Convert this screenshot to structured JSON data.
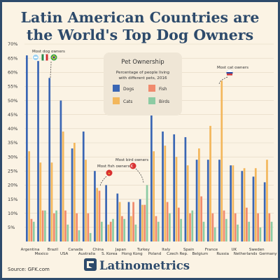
{
  "title_line1": "Latin American Countries are",
  "title_line2": "the World's Top Dog Owners",
  "source": "Source: GFK.com",
  "brand": "Latinometrics",
  "legend": {
    "title": "Pet Ownership",
    "subtitle_line1": "Percentage of people living",
    "subtitle_line2": "with different pets, 2016",
    "items": [
      "Dogs",
      "Fish",
      "Cats",
      "Birds"
    ]
  },
  "annotations": {
    "dog": "Most dog owners",
    "fish": "Most fish owners",
    "bird": "Most bird owners",
    "cat": "Most cat owners"
  },
  "colors": {
    "dogs": "#3a66b4",
    "cats": "#f3b75c",
    "fish": "#f08a6d",
    "birds": "#8ccba3",
    "title": "#2d4a6b",
    "background": "#fbf3e4"
  },
  "chart_data": {
    "type": "bar",
    "categories": [
      "Argentina",
      "Mexico",
      "Brazil",
      "USA",
      "Canada",
      "Australia",
      "China",
      "S. Korea",
      "Japan",
      "Hong Kong",
      "Turkey",
      "Poland",
      "Italy",
      "Czech Rep.",
      "Spain",
      "Belgium",
      "France",
      "Russia",
      "UK",
      "Netherlands",
      "Sweden",
      "Germany"
    ],
    "series": [
      {
        "name": "Dogs",
        "values": [
          66,
          64,
          58,
          50,
          33,
          39,
          25,
          20,
          17,
          14,
          15,
          45,
          39,
          38,
          37,
          29,
          29,
          29,
          27,
          25,
          23,
          21
        ]
      },
      {
        "name": "Cats",
        "values": [
          32,
          28,
          28,
          39,
          35,
          29,
          19,
          6,
          14,
          9,
          13,
          32,
          34,
          30,
          27,
          33,
          41,
          57,
          27,
          26,
          26,
          29
        ]
      },
      {
        "name": "Fish",
        "values": [
          8,
          11,
          10,
          11,
          10,
          10,
          18,
          7,
          9,
          14,
          13,
          9,
          14,
          12,
          10,
          16,
          10,
          11,
          10,
          12,
          10,
          10
        ]
      },
      {
        "name": "Birds",
        "values": [
          7,
          11,
          11,
          6,
          4,
          3,
          7,
          8,
          8,
          6,
          20,
          7,
          10,
          8,
          11,
          7,
          5,
          8,
          6,
          7,
          5,
          7
        ]
      }
    ],
    "yticks": [
      "5%",
      "10%",
      "15%",
      "20%",
      "25%",
      "30%",
      "35%",
      "40%",
      "45%",
      "50%",
      "55%",
      "60%",
      "65%",
      "70%"
    ],
    "ylim": [
      0,
      70
    ]
  }
}
